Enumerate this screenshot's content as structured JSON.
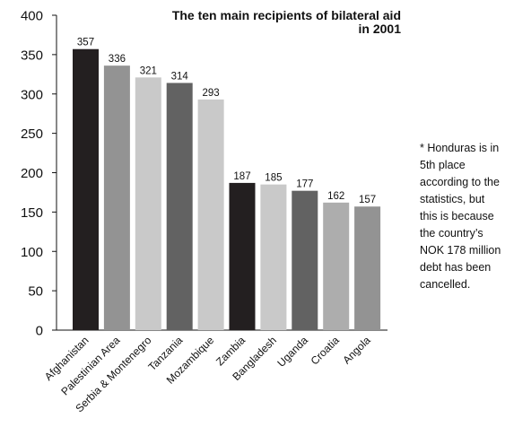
{
  "chart_data": {
    "type": "bar",
    "title": "The ten main recipients of bilateral aid in 2001",
    "xlabel": "",
    "ylabel": "",
    "ylim": [
      0,
      400
    ],
    "yticks": [
      0,
      50,
      100,
      150,
      200,
      250,
      300,
      350,
      400
    ],
    "grid": false,
    "legend": "none",
    "categories": [
      "Afghanistan",
      "Palestinian Area",
      "Serbia & Montenegro",
      "Tanzania",
      "Mozambique",
      "Zambia",
      "Bangladesh",
      "Uganda",
      "Croatia",
      "Angola"
    ],
    "values": [
      357,
      336,
      321,
      314,
      293,
      187,
      185,
      177,
      162,
      157
    ],
    "bar_colors": [
      "#231f20",
      "#939393",
      "#c9c9c9",
      "#626262",
      "#c9c9c9",
      "#231f20",
      "#c9c9c9",
      "#626262",
      "#adadad",
      "#939393"
    ],
    "annotation": "* Honduras is in 5th place according to the statistics, but this is because the country’s NOK 178 million debt has been cancelled."
  }
}
